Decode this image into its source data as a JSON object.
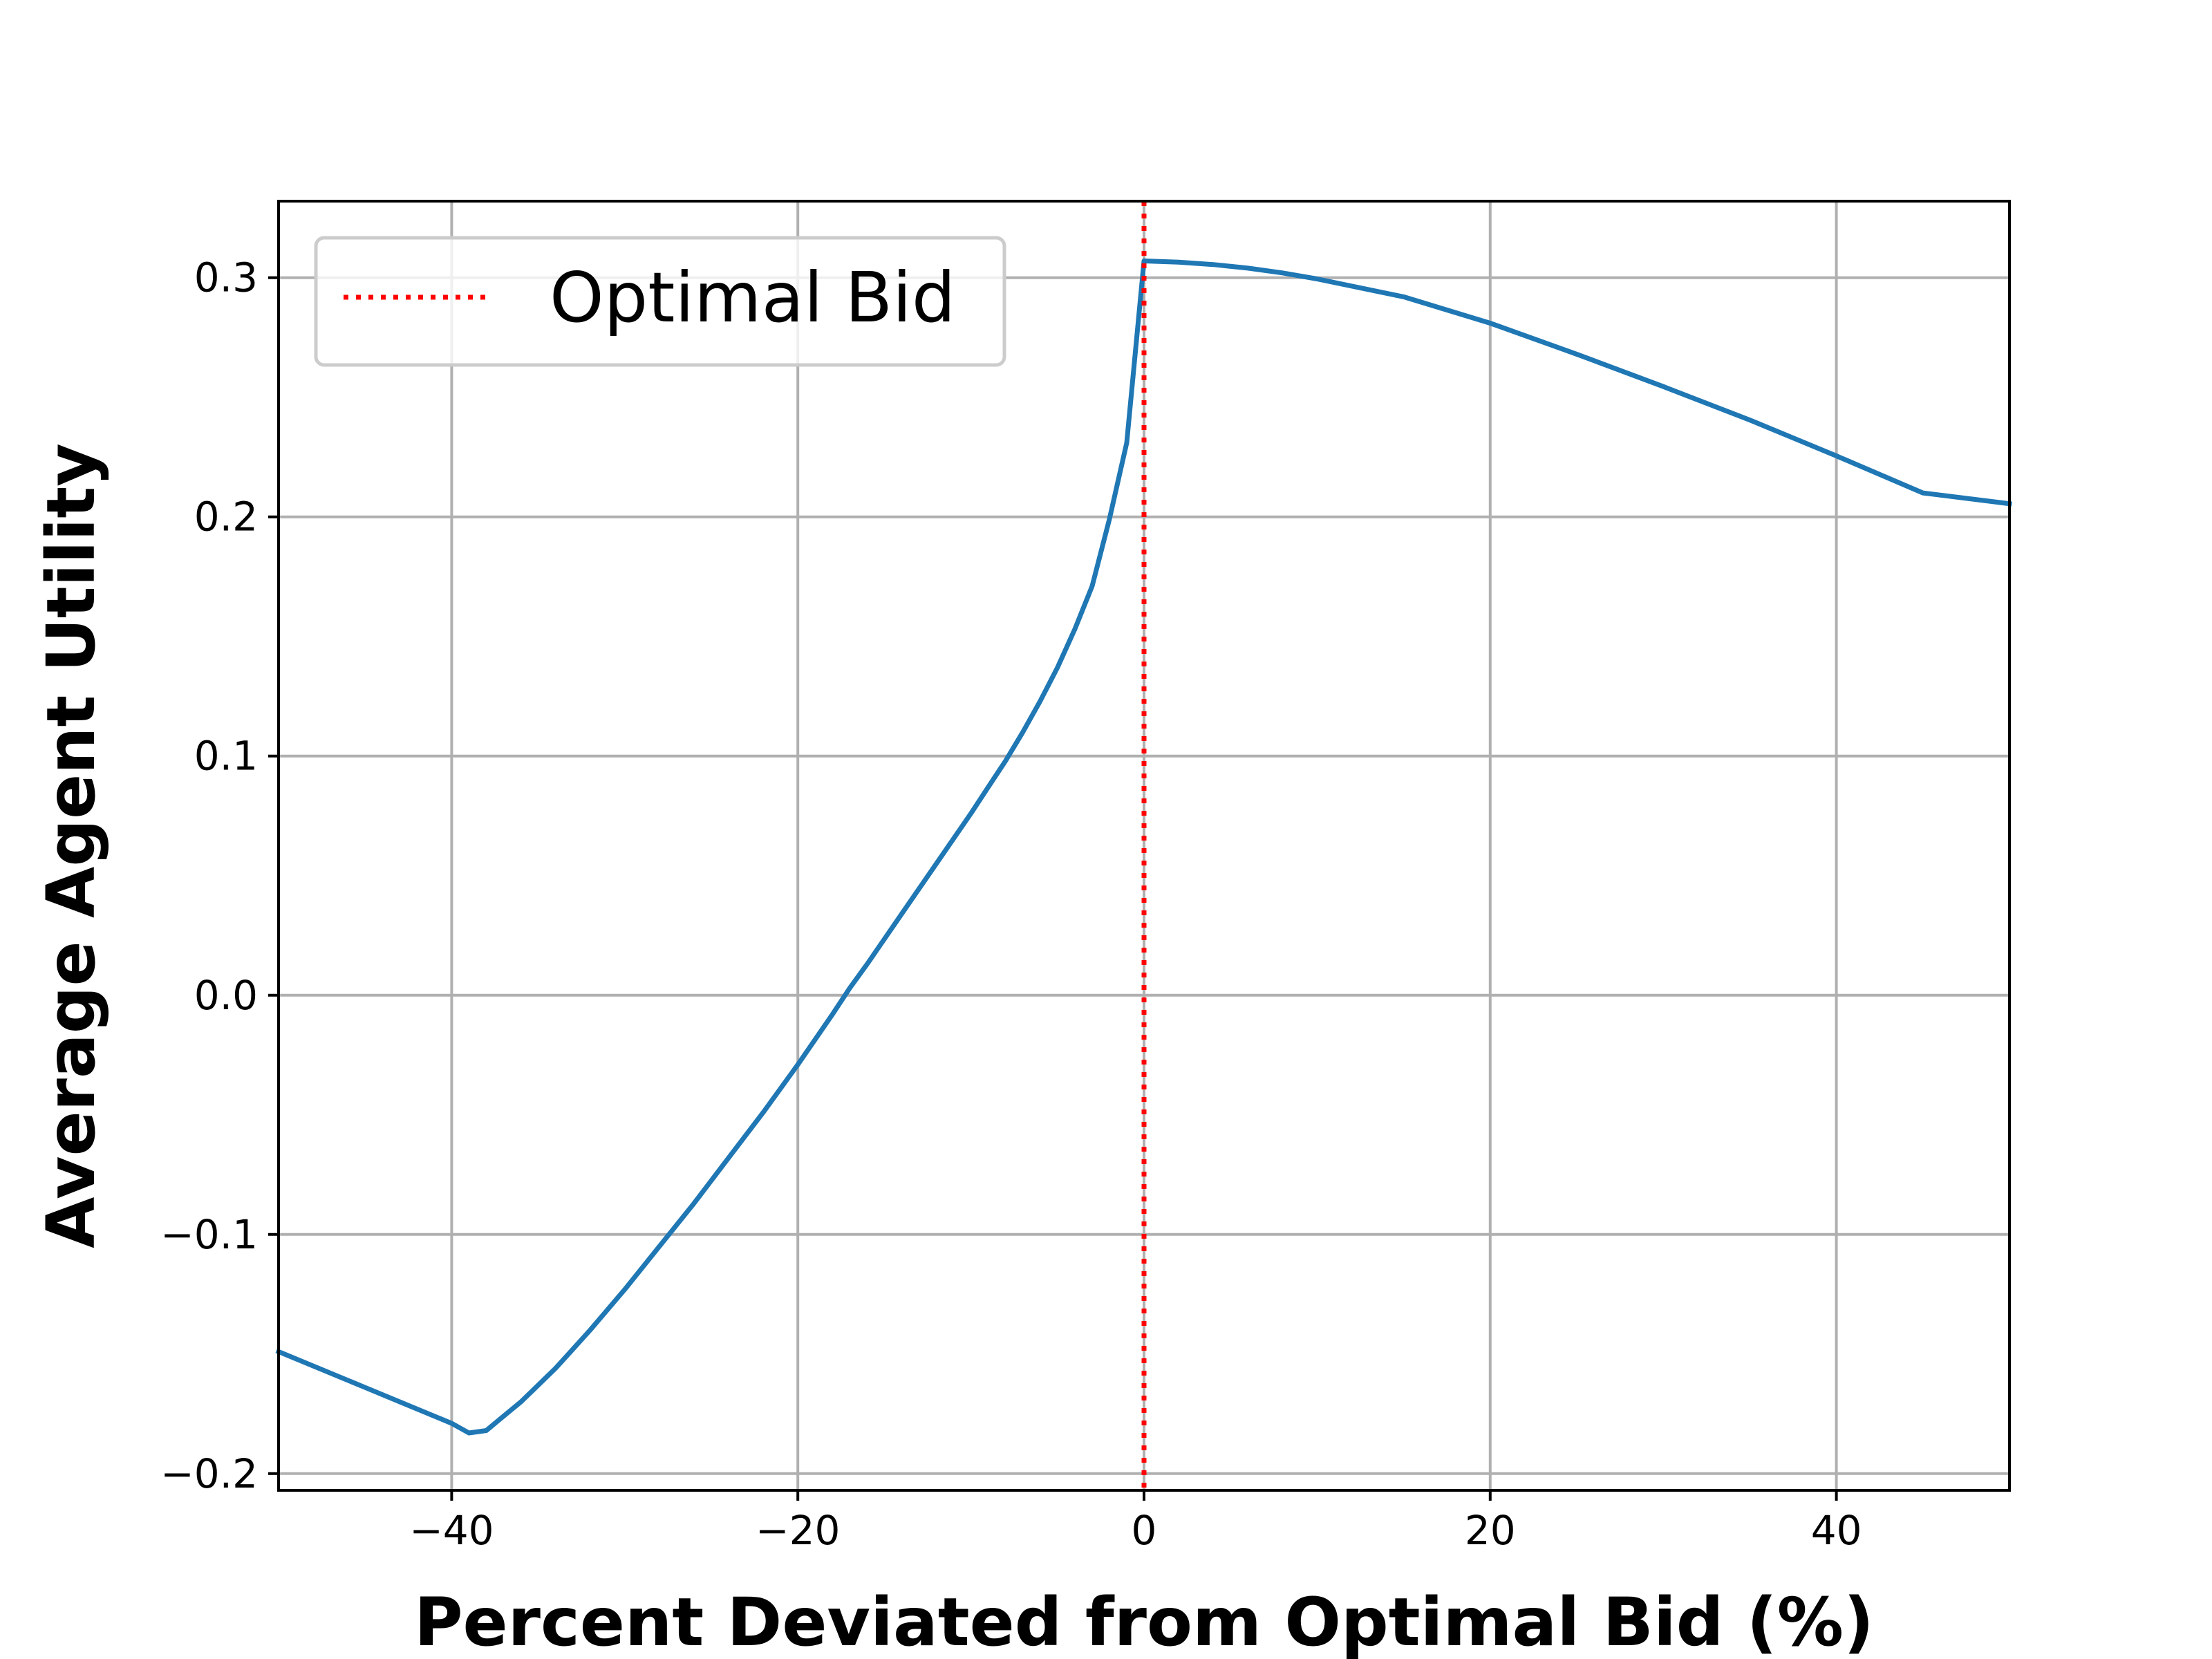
{
  "chart_data": {
    "type": "line",
    "title": "",
    "xlabel": "Percent Deviated from Optimal Bid (%)",
    "ylabel": "Average Agent Utility",
    "xlim": [
      -50,
      50
    ],
    "ylim": [
      -0.207,
      0.332
    ],
    "grid": true,
    "legend_position": "top-left",
    "x_ticks": [
      {
        "value": -40,
        "label": "−40"
      },
      {
        "value": -20,
        "label": "−20"
      },
      {
        "value": 0,
        "label": "0"
      },
      {
        "value": 20,
        "label": "20"
      },
      {
        "value": 40,
        "label": "40"
      }
    ],
    "y_ticks": [
      {
        "value": -0.2,
        "label": "−0.2"
      },
      {
        "value": -0.1,
        "label": "−0.1"
      },
      {
        "value": 0.0,
        "label": "0.0"
      },
      {
        "value": 0.1,
        "label": "0.1"
      },
      {
        "value": 0.2,
        "label": "0.2"
      },
      {
        "value": 0.3,
        "label": "0.3"
      }
    ],
    "series": [
      {
        "color": "#1f77b4",
        "style": "solid",
        "x": [
          -50,
          -45,
          -40,
          -39,
          -38,
          -37,
          -36,
          -35,
          -34,
          -33,
          -32,
          -30,
          -28,
          -26,
          -24,
          -22,
          -20,
          -18,
          -17,
          -16,
          -14,
          -12,
          -10,
          -9,
          -8,
          -7,
          -6,
          -5,
          -4,
          -3,
          -2,
          -1,
          0,
          2,
          4,
          6,
          8,
          10,
          15,
          20,
          25,
          30,
          35,
          40,
          45,
          50
        ],
        "y": [
          -0.149,
          -0.164,
          -0.179,
          -0.183,
          -0.182,
          -0.176,
          -0.17,
          -0.163,
          -0.156,
          -0.148,
          -0.14,
          -0.123,
          -0.105,
          -0.087,
          -0.068,
          -0.049,
          -0.029,
          -0.008,
          0.003,
          0.013,
          0.034,
          0.055,
          0.076,
          0.087,
          0.098,
          0.11,
          0.123,
          0.137,
          0.153,
          0.171,
          0.199,
          0.231,
          0.307,
          0.3065,
          0.3055,
          0.304,
          0.302,
          0.2995,
          0.292,
          0.281,
          0.268,
          0.2545,
          0.2405,
          0.2255,
          0.21,
          0.2055
        ]
      },
      {
        "name": "Optimal Bid",
        "color": "#ff0000",
        "style": "dotted",
        "vline_x": 0
      }
    ]
  }
}
